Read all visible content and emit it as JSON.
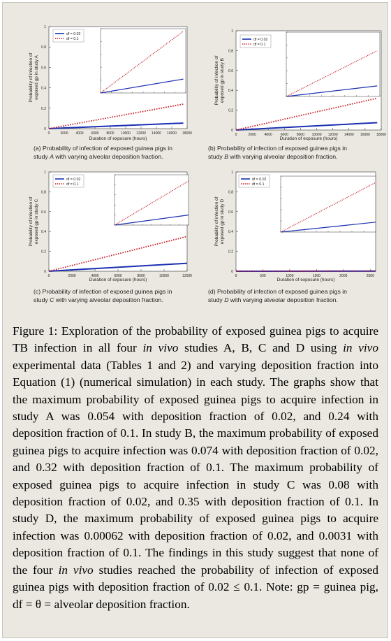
{
  "figure_label": "Figure 1",
  "figure_caption_text": ": Exploration of the probability of exposed guinea pigs to acquire TB infection in all four ",
  "caption_parts": {
    "p1": "Figure 1",
    "p2": ": Exploration of the probability of exposed guinea pigs to acquire TB infection in all four ",
    "p3": "in vivo",
    "p4": " studies A, B, C and D using ",
    "p5": "in vivo",
    "p6": " experimental data (Tables 1 and 2) and varying deposition fraction into Equation (1) (numerical simulation) in each study. The graphs show that the maximum probability of exposed guinea pigs to acquire infection in study A was 0.054 with deposition fraction of 0.02, and 0.24 with deposition fraction of 0.1. In study B, the maximum probability of exposed guinea pigs to acquire infection was 0.074 with deposition fraction of 0.02, and 0.32 with deposition fraction of 0.1. The maximum probability of exposed guinea pigs to acquire infection in study C was 0.08 with deposition fraction of 0.02, and 0.35 with deposition fraction of 0.1. In study D, the maximum probability of exposed guinea pigs to acquire infection was 0.00062 with deposition fraction of 0.02, and 0.0031 with deposition fraction of 0.1. The findings in this study suggest that none of the four ",
    "p7": "in vivo",
    "p8": " studies reached the probability of infection of exposed guinea pigs with deposition fraction of 0.02 ≤ 0.1. Note: gp = guinea pig, df = θ = alveolar deposition fraction."
  },
  "panels": {
    "a": {
      "caption_1": "(a)  Probability  of  infection  of  exposed  guinea  pigs  in",
      "caption_2a": "study ",
      "caption_2b": "A",
      "caption_2c": " with varying alveolar deposition fraction.",
      "ylabel_1": "Probability of infection of",
      "ylabel_2": "exposed gp in study A",
      "xlabel": "Duration of exposure (hours)"
    },
    "b": {
      "caption_1": "(b)  Probability  of  infection  of  exposed  guinea  pigs  in",
      "caption_2a": "study ",
      "caption_2b": "B",
      "caption_2c": " with varying alveolar deposition fraction.",
      "ylabel_1": "Probability of infection of",
      "ylabel_2": "exposed gp in study B",
      "xlabel": "Duration of exposure (hours)"
    },
    "c": {
      "caption_1": "(c)  Probability  of  infection  of  exposed  guinea  pigs  in",
      "caption_2a": "study ",
      "caption_2b": "C",
      "caption_2c": "  with varying alveolar deposition fraction.",
      "ylabel_1": "Probability of infection of",
      "ylabel_2": "exposed gp in study C",
      "xlabel": "Duration of exposure (hours)"
    },
    "d": {
      "caption_1": "(d)  Probability  of  infection  of  exposed  guinea  pigs  in",
      "caption_2a": "study ",
      "caption_2b": "D",
      "caption_2c": " with varying alveolar deposition fraction.",
      "ylabel_1": "Probability of infection of",
      "ylabel_2": "exposed gp in study D",
      "xlabel": "Duration of exposure (hours)"
    }
  },
  "colors": {
    "df_002": "#1a2fb0",
    "df_01": "#c8202a",
    "axis": "#333333"
  },
  "chart_data": [
    {
      "type": "line",
      "panel": "a",
      "xlabel": "Duration of exposure (hours)",
      "ylabel": "Probability of infection of exposed gp in study A",
      "xlim": [
        0,
        18000
      ],
      "ylim": [
        0,
        1
      ],
      "xticks": [
        0,
        2000,
        4000,
        6000,
        8000,
        10000,
        12000,
        14000,
        16000,
        18000
      ],
      "yticks": [
        0,
        0.2,
        0.4,
        0.6,
        0.8,
        1.0
      ],
      "legend": "top-left",
      "series": [
        {
          "name": "df = 0.02",
          "style": "solid",
          "x": [
            0,
            17500
          ],
          "y": [
            0,
            0.054
          ]
        },
        {
          "name": "df = 0.1",
          "style": "dotted",
          "x": [
            0,
            17500
          ],
          "y": [
            0,
            0.24
          ]
        }
      ],
      "inset": {
        "xlim": [
          0,
          18000
        ],
        "ylim": [
          0,
          0.25
        ],
        "y_max_label": "0.25"
      }
    },
    {
      "type": "line",
      "panel": "b",
      "xlabel": "Duration of exposure (hours)",
      "ylabel": "Probability of infection of exposed gp in study B",
      "xlim": [
        0,
        18000
      ],
      "ylim": [
        0,
        1
      ],
      "xticks": [
        0,
        2000,
        4000,
        6000,
        8000,
        10000,
        12000,
        14000,
        16000,
        18000
      ],
      "yticks": [
        0,
        0.2,
        0.4,
        0.6,
        0.8,
        1.0
      ],
      "legend": "top-left",
      "series": [
        {
          "name": "df = 0.02",
          "style": "solid",
          "x": [
            0,
            17500
          ],
          "y": [
            0,
            0.074
          ]
        },
        {
          "name": "df = 0.1",
          "style": "dotted",
          "x": [
            0,
            17500
          ],
          "y": [
            0,
            0.32
          ]
        }
      ],
      "inset": {
        "xlim": [
          0,
          18000
        ],
        "ylim": [
          0,
          0.45
        ],
        "y_max_label": "0.45"
      }
    },
    {
      "type": "line",
      "panel": "c",
      "xlabel": "Duration of exposure (hours)",
      "ylabel": "Probability of infection of exposed gp in study C",
      "xlim": [
        0,
        12000
      ],
      "ylim": [
        0,
        1
      ],
      "xticks": [
        0,
        2000,
        4000,
        6000,
        8000,
        10000,
        12000
      ],
      "yticks": [
        0,
        0.2,
        0.4,
        0.6,
        0.8,
        1.0
      ],
      "legend": "top-left",
      "series": [
        {
          "name": "df = 0.02",
          "style": "solid",
          "x": [
            0,
            12000
          ],
          "y": [
            0,
            0.08
          ]
        },
        {
          "name": "df = 0.1",
          "style": "dotted",
          "x": [
            0,
            12000
          ],
          "y": [
            0,
            0.35
          ]
        }
      ],
      "inset": {
        "xlim": [
          0,
          12000
        ],
        "ylim": [
          0,
          0.4
        ],
        "y_max_label": "0.4"
      }
    },
    {
      "type": "line",
      "panel": "d",
      "xlabel": "Duration of exposure (hours)",
      "ylabel": "Probability of infection of exposed gp in study D",
      "xlim": [
        0,
        2600
      ],
      "ylim": [
        0,
        1
      ],
      "xticks": [
        0,
        500,
        1000,
        1500,
        2000,
        2500
      ],
      "yticks": [
        0,
        0.2,
        0.4,
        0.6,
        0.8,
        1.0
      ],
      "legend": "top-left",
      "series": [
        {
          "name": "df = 0.02",
          "style": "solid",
          "x": [
            0,
            2600
          ],
          "y": [
            0,
            0.00062
          ]
        },
        {
          "name": "df = 0.1",
          "style": "dotted",
          "x": [
            0,
            2600
          ],
          "y": [
            0,
            0.0031
          ]
        }
      ],
      "inset": {
        "xlim": [
          0,
          2600
        ],
        "ylim": [
          0,
          0.0035
        ],
        "y_max_label": "0.0035"
      }
    }
  ],
  "legend_labels": [
    "df = 0.02",
    "df = 0.1"
  ]
}
